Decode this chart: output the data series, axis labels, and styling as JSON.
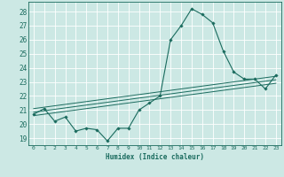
{
  "title": "",
  "xlabel": "Humidex (Indice chaleur)",
  "bg_color": "#cce8e4",
  "grid_color": "#ffffff",
  "line_color": "#1a6b5e",
  "xlim": [
    -0.5,
    23.5
  ],
  "ylim": [
    18.5,
    28.7
  ],
  "xticks": [
    0,
    1,
    2,
    3,
    4,
    5,
    6,
    7,
    8,
    9,
    10,
    11,
    12,
    13,
    14,
    15,
    16,
    17,
    18,
    19,
    20,
    21,
    22,
    23
  ],
  "yticks": [
    19,
    20,
    21,
    22,
    23,
    24,
    25,
    26,
    27,
    28
  ],
  "main_x": [
    0,
    1,
    2,
    3,
    4,
    5,
    6,
    7,
    8,
    9,
    10,
    11,
    12,
    13,
    14,
    15,
    16,
    17,
    18,
    19,
    20,
    21,
    22,
    23
  ],
  "main_y": [
    20.7,
    21.1,
    20.2,
    20.5,
    19.5,
    19.7,
    19.6,
    18.8,
    19.7,
    19.7,
    21.0,
    21.5,
    22.0,
    26.0,
    27.0,
    28.2,
    27.8,
    27.2,
    25.2,
    23.7,
    23.2,
    23.2,
    22.5,
    23.5
  ],
  "reg_lines": [
    [
      [
        0,
        23
      ],
      [
        20.6,
        22.9
      ]
    ],
    [
      [
        0,
        23
      ],
      [
        20.85,
        23.15
      ]
    ],
    [
      [
        0,
        23
      ],
      [
        21.1,
        23.4
      ]
    ]
  ]
}
